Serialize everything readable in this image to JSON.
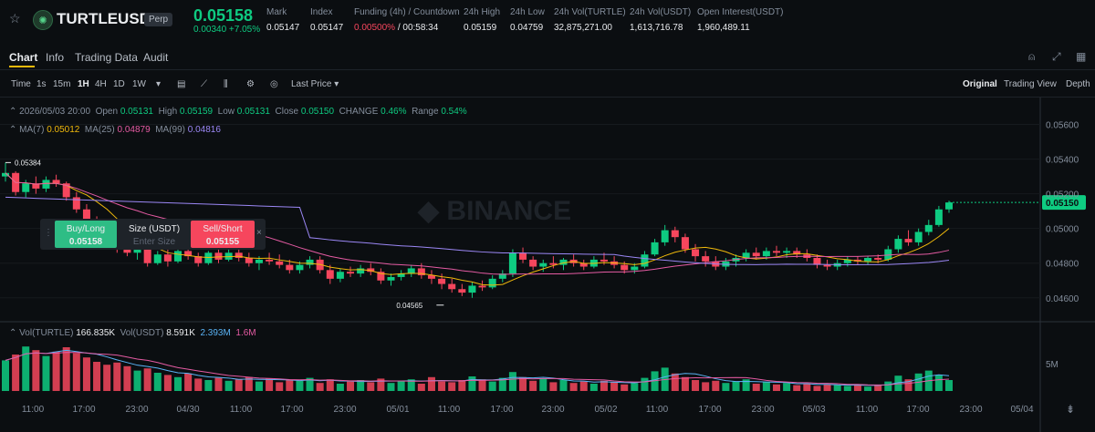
{
  "header": {
    "symbol": "TURTLEUSDT",
    "badge": "Perp",
    "price": "0.05158",
    "change": "0.00340 +7.05%",
    "stats": [
      {
        "label": "Mark",
        "value": "0.05147"
      },
      {
        "label": "Index",
        "value": "0.05147"
      },
      {
        "label": "Funding (4h) / Countdown",
        "value_a": "0.00500%",
        "value_b": " / 00:58:34"
      },
      {
        "label": "24h High",
        "value": "0.05159"
      },
      {
        "label": "24h Low",
        "value": "0.04759"
      },
      {
        "label": "24h Vol(TURTLE)",
        "value": "32,875,271.00"
      },
      {
        "label": "24h Vol(USDT)",
        "value": "1,613,716.78"
      },
      {
        "label": "Open Interest(USDT)",
        "value": "1,960,489.11"
      }
    ]
  },
  "tabs": [
    "Chart",
    "Info",
    "Trading Data",
    "Audit"
  ],
  "toolbar": {
    "items": [
      "Time",
      "1s",
      "15m",
      "1H",
      "4H",
      "1D",
      "1W"
    ],
    "last_price": "Last Price",
    "views": [
      "Original",
      "Trading View",
      "Depth"
    ]
  },
  "ohlc": {
    "date": "2026/05/03 20:00",
    "open_l": "Open",
    "open": "0.05131",
    "high_l": "High",
    "high": "0.05159",
    "low_l": "Low",
    "low": "0.05131",
    "close_l": "Close",
    "close": "0.05150",
    "change_l": "CHANGE",
    "change": "0.46%",
    "range_l": "Range",
    "range": "0.54%"
  },
  "ma": {
    "ma7_l": "MA(7)",
    "ma7": "0.05012",
    "ma25_l": "MA(25)",
    "ma25": "0.04879",
    "ma99_l": "MA(99)",
    "ma99": "0.04816"
  },
  "vol": {
    "l1": "Vol(TURTLE)",
    "v1": "166.835K",
    "l2": "Vol(USDT)",
    "v2": "8.591K",
    "v3": "2.393M",
    "v4": "1.6M"
  },
  "trade": {
    "buy": "Buy/Long",
    "buy_price": "0.05158",
    "size": "Size (USDT)",
    "size_ph": "Enter Size",
    "sell": "Sell/Short",
    "sell_price": "0.05155"
  },
  "colors": {
    "up": "#0ecb81",
    "down": "#f6465d",
    "ma7": "#f0b90b",
    "ma25": "#e55ba3",
    "ma99": "#9b87f5"
  },
  "chart_data": {
    "type": "candlestick",
    "y_ticks": [
      "0.05600",
      "0.05400",
      "0.05200",
      "0.05000",
      "0.04800",
      "0.04600"
    ],
    "x_ticks": [
      "11:00",
      "17:00",
      "23:00",
      "04/30",
      "11:00",
      "17:00",
      "23:00",
      "05/01",
      "11:00",
      "17:00",
      "23:00",
      "05/02",
      "11:00",
      "17:00",
      "23:00",
      "05/03",
      "11:00",
      "17:00",
      "23:00",
      "05/04"
    ],
    "current_price": "0.05150",
    "high_label": "0.05384",
    "low_label": "0.04565",
    "vol_tick": "5M",
    "ylim": [
      0.0452,
      0.0565
    ],
    "candles": [
      [
        0.053,
        0.0538,
        0.0527,
        0.0532
      ],
      [
        0.0532,
        0.0533,
        0.0519,
        0.0521
      ],
      [
        0.0521,
        0.0528,
        0.0518,
        0.0526
      ],
      [
        0.0526,
        0.053,
        0.052,
        0.0523
      ],
      [
        0.0523,
        0.053,
        0.0521,
        0.0528
      ],
      [
        0.0528,
        0.0531,
        0.0524,
        0.0526
      ],
      [
        0.0526,
        0.0527,
        0.0516,
        0.0518
      ],
      [
        0.0518,
        0.0521,
        0.0509,
        0.0511
      ],
      [
        0.0511,
        0.0514,
        0.0501,
        0.0503
      ],
      [
        0.0503,
        0.0507,
        0.0496,
        0.0499
      ],
      [
        0.0499,
        0.0503,
        0.049,
        0.0493
      ],
      [
        0.0493,
        0.0497,
        0.0486,
        0.0489
      ],
      [
        0.0489,
        0.0493,
        0.0484,
        0.0486
      ],
      [
        0.0486,
        0.0491,
        0.0482,
        0.0488
      ],
      [
        0.0488,
        0.049,
        0.0478,
        0.048
      ],
      [
        0.048,
        0.0487,
        0.0479,
        0.0485
      ],
      [
        0.0485,
        0.0488,
        0.0478,
        0.0481
      ],
      [
        0.0481,
        0.0489,
        0.048,
        0.0487
      ],
      [
        0.0487,
        0.049,
        0.0482,
        0.0484
      ],
      [
        0.0484,
        0.0486,
        0.0478,
        0.048
      ],
      [
        0.048,
        0.0487,
        0.0479,
        0.0486
      ],
      [
        0.0486,
        0.0488,
        0.048,
        0.0482
      ],
      [
        0.0482,
        0.0488,
        0.0481,
        0.0486
      ],
      [
        0.0486,
        0.0489,
        0.0481,
        0.0483
      ],
      [
        0.0483,
        0.0486,
        0.0478,
        0.048
      ],
      [
        0.048,
        0.0484,
        0.0476,
        0.0482
      ],
      [
        0.0482,
        0.0486,
        0.0479,
        0.0481
      ],
      [
        0.0481,
        0.0485,
        0.0477,
        0.0479
      ],
      [
        0.0479,
        0.0482,
        0.0474,
        0.0476
      ],
      [
        0.0476,
        0.0481,
        0.0474,
        0.0479
      ],
      [
        0.0479,
        0.0484,
        0.0477,
        0.0482
      ],
      [
        0.0482,
        0.0484,
        0.0474,
        0.0476
      ],
      [
        0.0476,
        0.0479,
        0.0468,
        0.0471
      ],
      [
        0.0471,
        0.0477,
        0.0469,
        0.0475
      ],
      [
        0.0475,
        0.0478,
        0.0472,
        0.0474
      ],
      [
        0.0474,
        0.0479,
        0.0472,
        0.0477
      ],
      [
        0.0477,
        0.048,
        0.0473,
        0.0475
      ],
      [
        0.0475,
        0.0477,
        0.0468,
        0.047
      ],
      [
        0.047,
        0.0474,
        0.0467,
        0.0472
      ],
      [
        0.0472,
        0.0476,
        0.047,
        0.0474
      ],
      [
        0.0474,
        0.0479,
        0.0472,
        0.0477
      ],
      [
        0.0477,
        0.048,
        0.0471,
        0.0473
      ],
      [
        0.0473,
        0.0476,
        0.0468,
        0.0471
      ],
      [
        0.0471,
        0.0474,
        0.0465,
        0.0468
      ],
      [
        0.0468,
        0.0471,
        0.0463,
        0.0465
      ],
      [
        0.0465,
        0.0468,
        0.0461,
        0.0463
      ],
      [
        0.0463,
        0.0469,
        0.046,
        0.0467
      ],
      [
        0.0467,
        0.047,
        0.0464,
        0.0466
      ],
      [
        0.0466,
        0.0473,
        0.0465,
        0.0471
      ],
      [
        0.0471,
        0.0476,
        0.0469,
        0.0474
      ],
      [
        0.0474,
        0.0488,
        0.0472,
        0.0486
      ],
      [
        0.0486,
        0.0489,
        0.048,
        0.0482
      ],
      [
        0.0482,
        0.0484,
        0.0476,
        0.0478
      ],
      [
        0.0478,
        0.0482,
        0.0475,
        0.048
      ],
      [
        0.048,
        0.0484,
        0.0477,
        0.0479
      ],
      [
        0.0479,
        0.0483,
        0.0476,
        0.0482
      ],
      [
        0.0482,
        0.0485,
        0.0478,
        0.048
      ],
      [
        0.048,
        0.0482,
        0.0476,
        0.0478
      ],
      [
        0.0478,
        0.0484,
        0.0477,
        0.0482
      ],
      [
        0.0482,
        0.0486,
        0.0479,
        0.0481
      ],
      [
        0.0481,
        0.0484,
        0.0477,
        0.0479
      ],
      [
        0.0479,
        0.0481,
        0.0474,
        0.0476
      ],
      [
        0.0476,
        0.048,
        0.0474,
        0.0478
      ],
      [
        0.0478,
        0.0487,
        0.0477,
        0.0485
      ],
      [
        0.0485,
        0.0494,
        0.0484,
        0.0492
      ],
      [
        0.0492,
        0.0502,
        0.049,
        0.0499
      ],
      [
        0.0499,
        0.0501,
        0.0492,
        0.0495
      ],
      [
        0.0495,
        0.0497,
        0.0486,
        0.0488
      ],
      [
        0.0488,
        0.0491,
        0.0481,
        0.0484
      ],
      [
        0.0484,
        0.0487,
        0.0478,
        0.0481
      ],
      [
        0.0481,
        0.0484,
        0.0476,
        0.0478
      ],
      [
        0.0478,
        0.0483,
        0.0476,
        0.0481
      ],
      [
        0.0481,
        0.0485,
        0.0478,
        0.0483
      ],
      [
        0.0483,
        0.0488,
        0.0481,
        0.0486
      ],
      [
        0.0486,
        0.0489,
        0.0482,
        0.0484
      ],
      [
        0.0484,
        0.0489,
        0.0482,
        0.0487
      ],
      [
        0.0487,
        0.049,
        0.0484,
        0.0486
      ],
      [
        0.0486,
        0.0489,
        0.0483,
        0.0487
      ],
      [
        0.0487,
        0.0489,
        0.0483,
        0.0485
      ],
      [
        0.0485,
        0.0488,
        0.0481,
        0.0483
      ],
      [
        0.0483,
        0.0485,
        0.0477,
        0.0479
      ],
      [
        0.0479,
        0.0482,
        0.0476,
        0.0478
      ],
      [
        0.0478,
        0.0482,
        0.0476,
        0.048
      ],
      [
        0.048,
        0.0484,
        0.0478,
        0.0482
      ],
      [
        0.0482,
        0.0484,
        0.0479,
        0.0481
      ],
      [
        0.0481,
        0.0484,
        0.0479,
        0.0483
      ],
      [
        0.0483,
        0.0485,
        0.048,
        0.0482
      ],
      [
        0.0482,
        0.049,
        0.0481,
        0.0488
      ],
      [
        0.0488,
        0.0496,
        0.0486,
        0.0494
      ],
      [
        0.0494,
        0.0499,
        0.049,
        0.0492
      ],
      [
        0.0492,
        0.05,
        0.049,
        0.0498
      ],
      [
        0.0498,
        0.0505,
        0.0496,
        0.0502
      ],
      [
        0.0502,
        0.0513,
        0.0501,
        0.0511
      ],
      [
        0.0511,
        0.0516,
        0.0509,
        0.0515
      ]
    ],
    "volumes": [
      4.2,
      5.0,
      6.1,
      5.6,
      4.8,
      5.4,
      6.0,
      5.2,
      4.6,
      4.0,
      3.6,
      3.9,
      3.4,
      2.8,
      3.1,
      2.5,
      2.2,
      1.9,
      2.4,
      1.7,
      1.5,
      1.8,
      1.4,
      1.6,
      1.9,
      1.3,
      1.7,
      1.2,
      1.5,
      1.4,
      1.8,
      1.1,
      1.6,
      1.0,
      1.3,
      1.5,
      1.2,
      1.7,
      1.1,
      1.4,
      1.6,
      1.0,
      1.9,
      1.3,
      1.2,
      1.5,
      2.0,
      1.6,
      1.3,
      1.8,
      2.6,
      1.9,
      1.4,
      1.7,
      1.2,
      1.5,
      1.1,
      1.3,
      1.0,
      1.4,
      1.2,
      0.9,
      1.1,
      1.8,
      2.7,
      3.2,
      2.4,
      1.9,
      1.5,
      1.2,
      1.4,
      1.1,
      1.3,
      1.6,
      1.0,
      1.2,
      0.9,
      1.1,
      0.8,
      1.0,
      0.7,
      0.9,
      0.8,
      0.7,
      0.9,
      0.6,
      0.8,
      1.3,
      2.1,
      1.6,
      2.4,
      2.8,
      2.2,
      1.5
    ]
  }
}
